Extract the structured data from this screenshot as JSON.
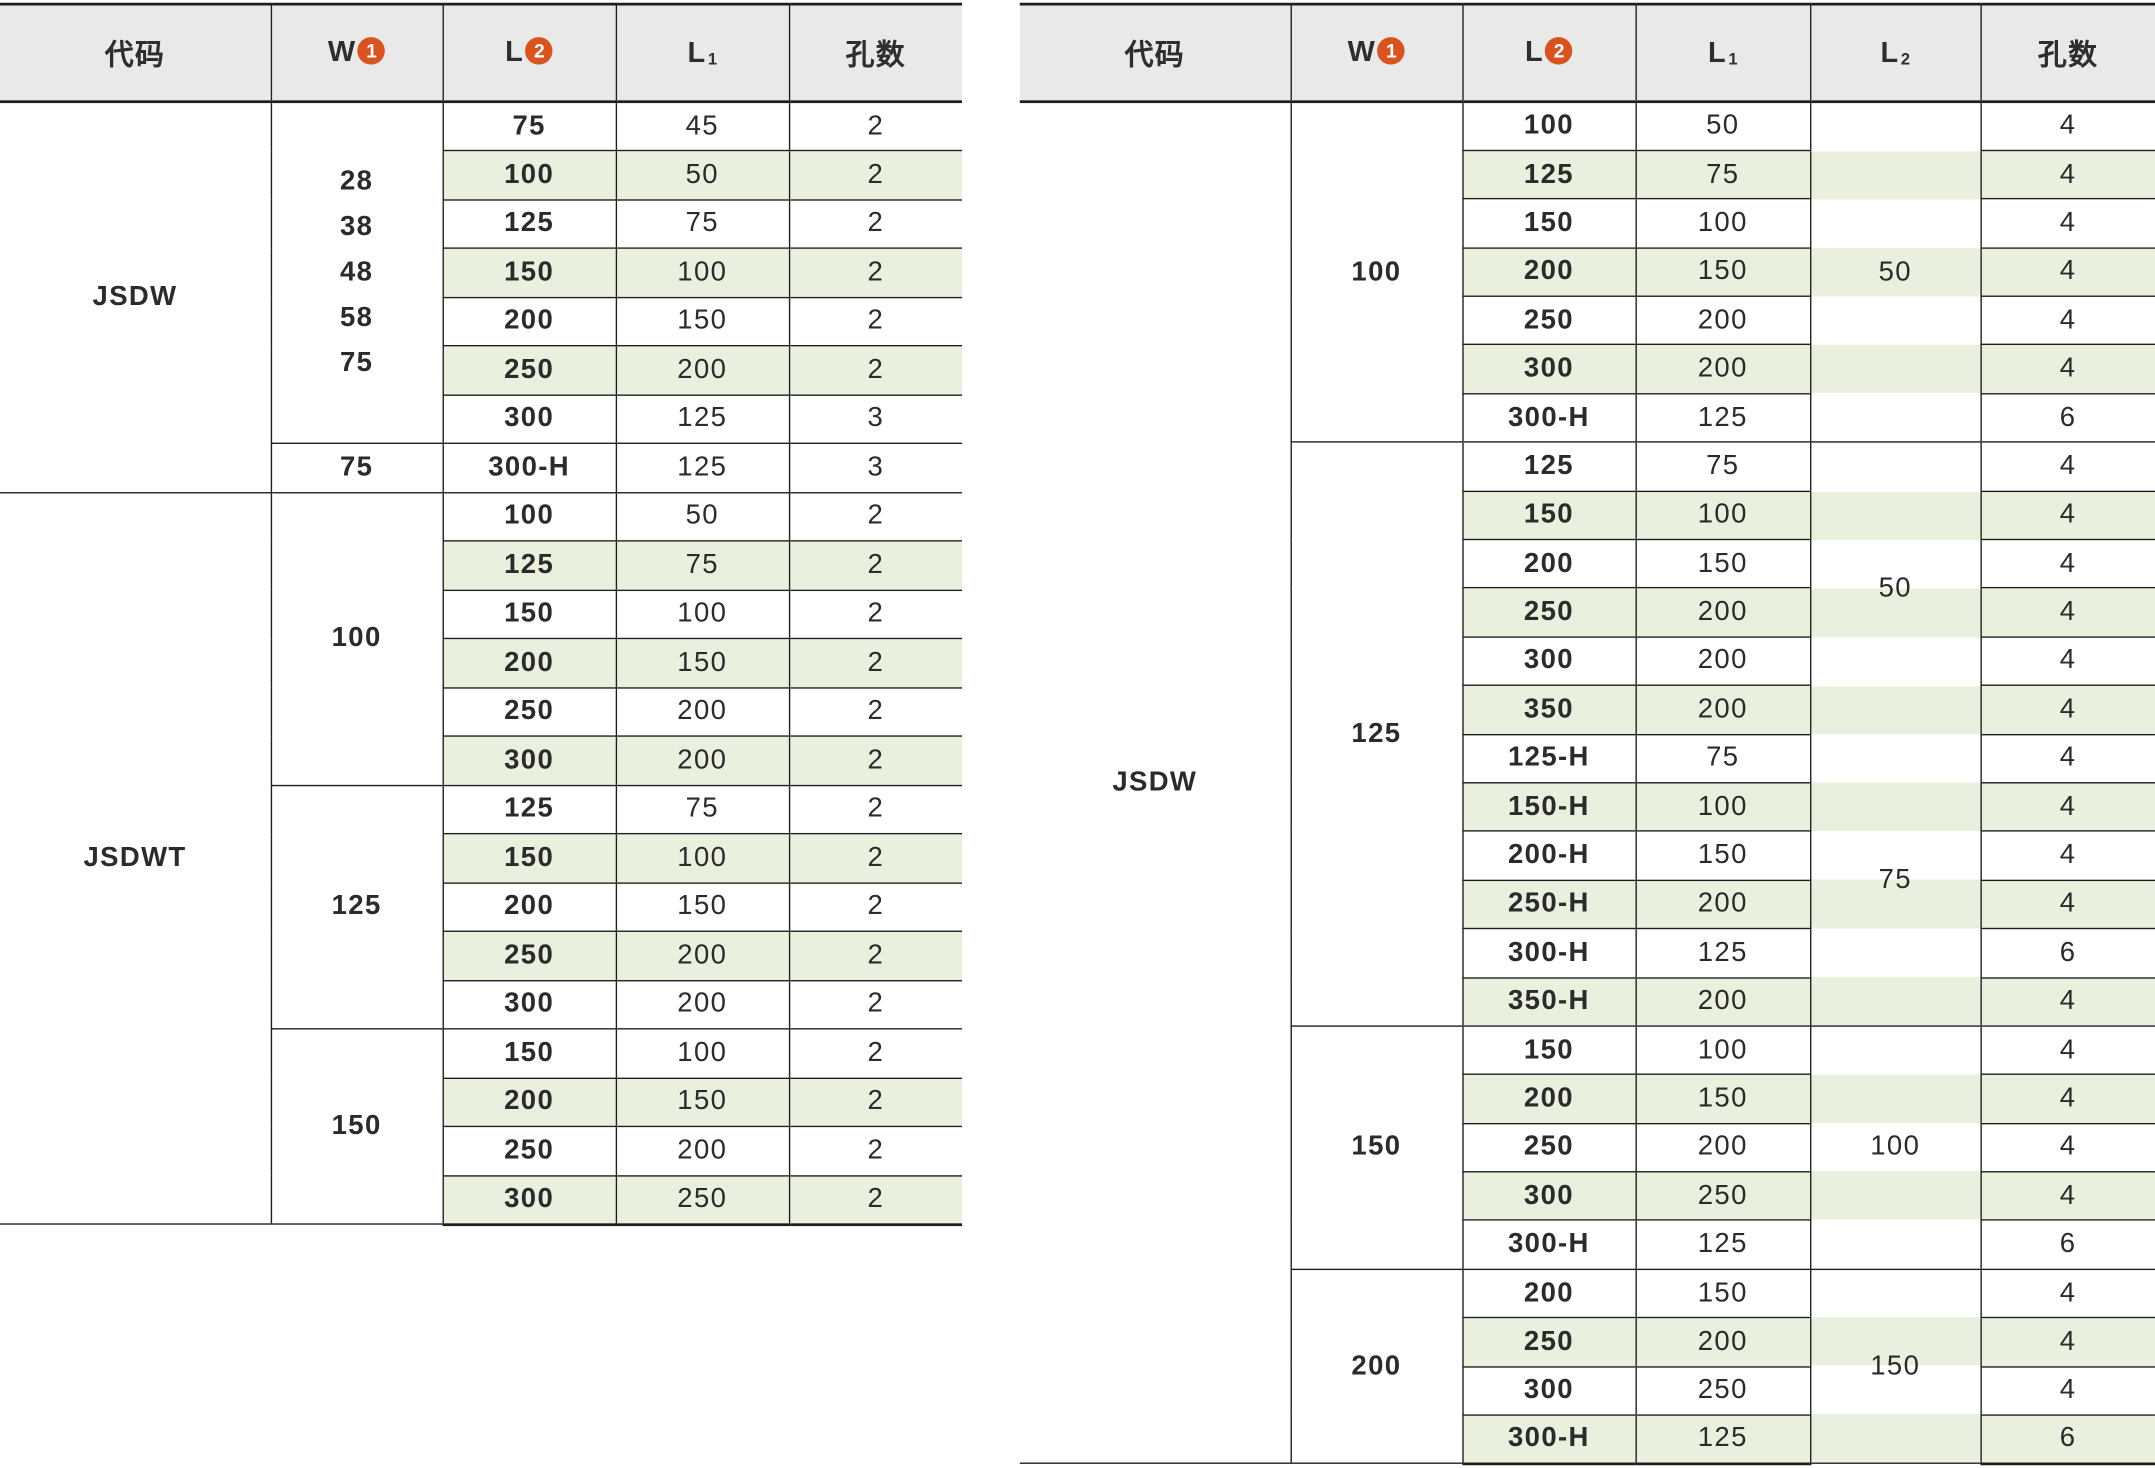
{
  "left_table": {
    "headers": {
      "code": "代码",
      "w": "W",
      "w_badge": "1",
      "l": "L",
      "l_badge": "2",
      "l1": "L",
      "l1_sub": "1",
      "holes": "孔数"
    },
    "groups": [
      {
        "code": "JSDW",
        "subgroups": [
          {
            "w": [
              "28",
              "38",
              "48",
              "58",
              "75"
            ],
            "rows": [
              {
                "l": "75",
                "l1": "45",
                "holes": "2"
              },
              {
                "l": "100",
                "l1": "50",
                "holes": "2"
              },
              {
                "l": "125",
                "l1": "75",
                "holes": "2"
              },
              {
                "l": "150",
                "l1": "100",
                "holes": "2"
              },
              {
                "l": "200",
                "l1": "150",
                "holes": "2"
              },
              {
                "l": "250",
                "l1": "200",
                "holes": "2"
              },
              {
                "l": "300",
                "l1": "125",
                "holes": "3"
              }
            ]
          },
          {
            "w": [
              "75"
            ],
            "rows": [
              {
                "l": "300-H",
                "l1": "125",
                "holes": "3"
              }
            ]
          }
        ]
      },
      {
        "code": "JSDWT",
        "subgroups": [
          {
            "w": [
              "100"
            ],
            "rows": [
              {
                "l": "100",
                "l1": "50",
                "holes": "2"
              },
              {
                "l": "125",
                "l1": "75",
                "holes": "2"
              },
              {
                "l": "150",
                "l1": "100",
                "holes": "2"
              },
              {
                "l": "200",
                "l1": "150",
                "holes": "2"
              },
              {
                "l": "250",
                "l1": "200",
                "holes": "2"
              },
              {
                "l": "300",
                "l1": "200",
                "holes": "2"
              }
            ]
          },
          {
            "w": [
              "125"
            ],
            "rows": [
              {
                "l": "125",
                "l1": "75",
                "holes": "2"
              },
              {
                "l": "150",
                "l1": "100",
                "holes": "2"
              },
              {
                "l": "200",
                "l1": "150",
                "holes": "2"
              },
              {
                "l": "250",
                "l1": "200",
                "holes": "2"
              },
              {
                "l": "300",
                "l1": "200",
                "holes": "2"
              }
            ]
          },
          {
            "w": [
              "150"
            ],
            "rows": [
              {
                "l": "150",
                "l1": "100",
                "holes": "2"
              },
              {
                "l": "200",
                "l1": "150",
                "holes": "2"
              },
              {
                "l": "250",
                "l1": "200",
                "holes": "2"
              },
              {
                "l": "300",
                "l1": "250",
                "holes": "2"
              }
            ]
          }
        ]
      }
    ]
  },
  "right_table": {
    "headers": {
      "code": "代码",
      "w": "W",
      "w_badge": "1",
      "l": "L",
      "l_badge": "2",
      "l1": "L",
      "l1_sub": "1",
      "l2": "L",
      "l2_sub": "2",
      "holes": "孔数"
    },
    "groups": [
      {
        "code": "JSDW",
        "subgroups": [
          {
            "w": "100",
            "l2_blocks": [
              {
                "value": "50",
                "span": 7
              }
            ],
            "rows": [
              {
                "l": "100",
                "l1": "50",
                "holes": "4"
              },
              {
                "l": "125",
                "l1": "75",
                "holes": "4"
              },
              {
                "l": "150",
                "l1": "100",
                "holes": "4"
              },
              {
                "l": "200",
                "l1": "150",
                "holes": "4"
              },
              {
                "l": "250",
                "l1": "200",
                "holes": "4"
              },
              {
                "l": "300",
                "l1": "200",
                "holes": "4"
              },
              {
                "l": "300-H",
                "l1": "125",
                "holes": "6"
              }
            ]
          },
          {
            "w": "125",
            "l2_blocks": [
              {
                "value": "50",
                "span": 6
              },
              {
                "value": "75",
                "span": 6
              }
            ],
            "rows": [
              {
                "l": "125",
                "l1": "75",
                "holes": "4"
              },
              {
                "l": "150",
                "l1": "100",
                "holes": "4"
              },
              {
                "l": "200",
                "l1": "150",
                "holes": "4"
              },
              {
                "l": "250",
                "l1": "200",
                "holes": "4"
              },
              {
                "l": "300",
                "l1": "200",
                "holes": "4"
              },
              {
                "l": "350",
                "l1": "200",
                "holes": "4"
              },
              {
                "l": "125-H",
                "l1": "75",
                "holes": "4"
              },
              {
                "l": "150-H",
                "l1": "100",
                "holes": "4"
              },
              {
                "l": "200-H",
                "l1": "150",
                "holes": "4"
              },
              {
                "l": "250-H",
                "l1": "200",
                "holes": "4"
              },
              {
                "l": "300-H",
                "l1": "125",
                "holes": "6"
              },
              {
                "l": "350-H",
                "l1": "200",
                "holes": "4"
              }
            ]
          },
          {
            "w": "150",
            "l2_blocks": [
              {
                "value": "100",
                "span": 5
              }
            ],
            "rows": [
              {
                "l": "150",
                "l1": "100",
                "holes": "4"
              },
              {
                "l": "200",
                "l1": "150",
                "holes": "4"
              },
              {
                "l": "250",
                "l1": "200",
                "holes": "4"
              },
              {
                "l": "300",
                "l1": "250",
                "holes": "4"
              },
              {
                "l": "300-H",
                "l1": "125",
                "holes": "6"
              }
            ]
          },
          {
            "w": "200",
            "l2_blocks": [
              {
                "value": "150",
                "span": 4
              }
            ],
            "rows": [
              {
                "l": "200",
                "l1": "150",
                "holes": "4"
              },
              {
                "l": "250",
                "l1": "200",
                "holes": "4"
              },
              {
                "l": "300",
                "l1": "250",
                "holes": "4"
              },
              {
                "l": "300-H",
                "l1": "125",
                "holes": "6"
              }
            ]
          }
        ]
      }
    ]
  },
  "colors": {
    "accent_text": "#3b6e96",
    "stripe": "#e9f1de",
    "header_bg": "#e9e9e9",
    "badge": "#d9531e",
    "rule": "#1e1e1e"
  }
}
